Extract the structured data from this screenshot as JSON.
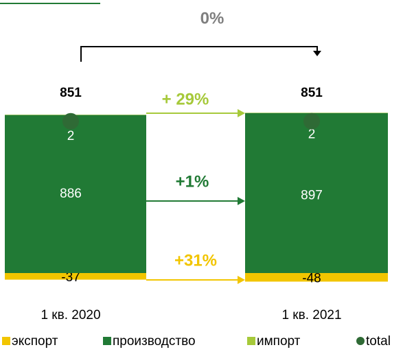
{
  "chart_data": {
    "type": "bar",
    "categories": [
      "1 кв. 2020",
      "1 кв. 2021"
    ],
    "series": [
      {
        "name": "экспорт",
        "color": "#f2c500",
        "values": [
          -37,
          -48
        ]
      },
      {
        "name": "производство",
        "color": "#217a35",
        "values": [
          886,
          897
        ]
      },
      {
        "name": "импорт",
        "color": "#a6c93a",
        "values": [
          2,
          2
        ]
      },
      {
        "name": "total",
        "color": "#2f6a35",
        "values": [
          851,
          851
        ],
        "marker": "dot"
      }
    ],
    "annotations": [
      {
        "text": "0%",
        "color": "#7f7f7f"
      },
      {
        "text": "+ 29%",
        "color": "#a6c93a"
      },
      {
        "text": "+1%",
        "color": "#217a35"
      },
      {
        "text": "+31%",
        "color": "#f2c500"
      }
    ]
  }
}
